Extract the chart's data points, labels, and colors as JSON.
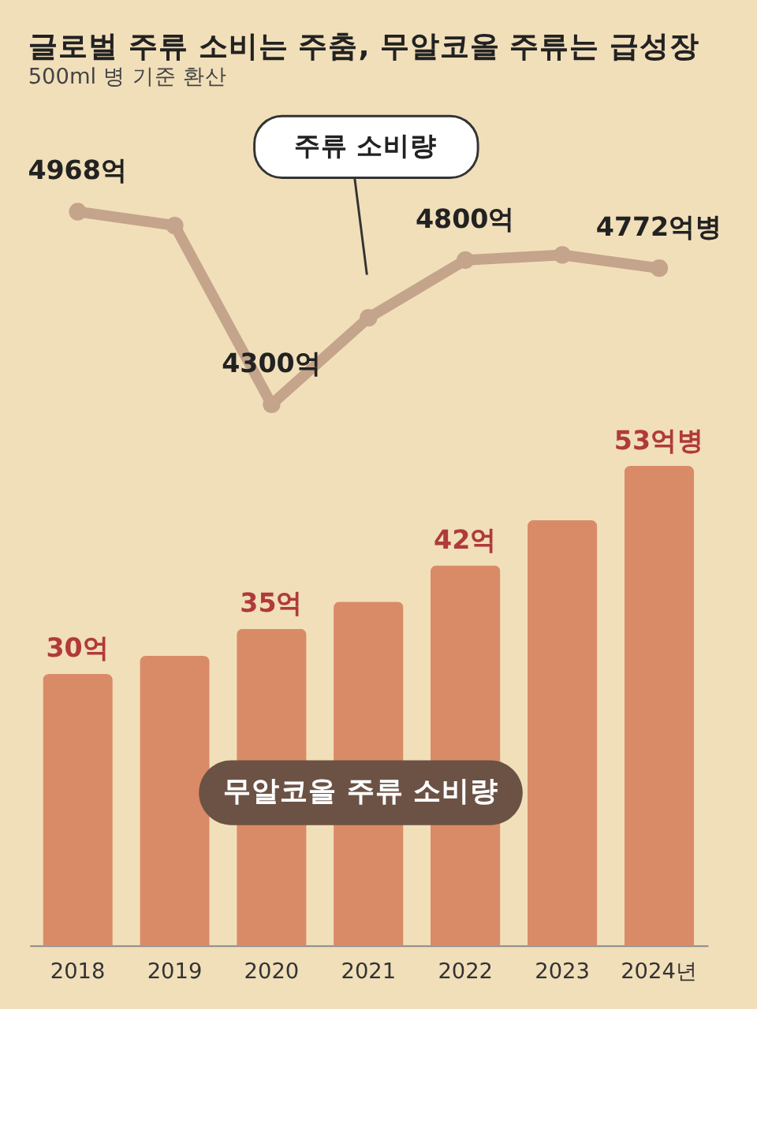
{
  "chart_data": [
    {
      "type": "line",
      "title": "글로벌 주류 소비는 주춤, 무알코올 주류는 급성장",
      "subtitle": "500ml 병 기준 환산",
      "categories": [
        null,
        null,
        null,
        null,
        null,
        null,
        null
      ],
      "series": [
        {
          "name": "주류 소비량",
          "color": "#c4a48a",
          "values": [
            4968,
            4920,
            4300,
            4600,
            4800,
            4818,
            4772
          ],
          "value_labels": [
            "4968억",
            null,
            "4300억",
            null,
            "4800억",
            null,
            "4772억병"
          ]
        }
      ],
      "marker": "circle",
      "tick_labels": false
    },
    {
      "type": "bar",
      "categories": [
        "2018",
        "2019",
        "2020",
        "2021",
        "2022",
        "2023",
        "2024년"
      ],
      "series": [
        {
          "name": "무알코올 주류 소비량",
          "color": "#d98b67",
          "values": [
            30,
            32,
            35,
            38,
            42,
            47,
            53
          ],
          "value_labels": [
            "30억",
            null,
            "35억",
            null,
            "42억",
            null,
            "53억병"
          ]
        }
      ],
      "tick_labels": "x"
    }
  ]
}
